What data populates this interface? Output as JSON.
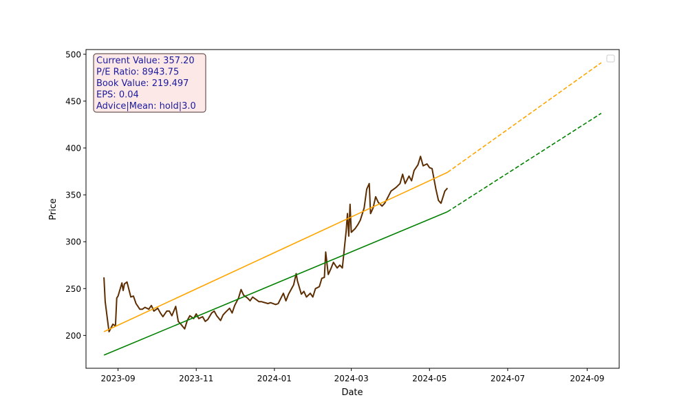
{
  "chart_data": {
    "type": "line",
    "title": "",
    "xlabel": "Date",
    "ylabel": "Price",
    "xlim": [
      "2023-08-07",
      "2024-09-26"
    ],
    "ylim": [
      165,
      505
    ],
    "x_ticks": [
      "2023-09-01",
      "2023-11-01",
      "2024-01-01",
      "2024-03-01",
      "2024-05-01",
      "2024-07-01",
      "2024-09-01"
    ],
    "x_tick_labels": [
      "2023-09",
      "2023-11",
      "2024-01",
      "2024-03",
      "2024-05",
      "2024-07",
      "2024-09"
    ],
    "y_ticks": [
      200,
      250,
      300,
      350,
      400,
      450,
      500
    ],
    "y_tick_labels": [
      "200",
      "250",
      "300",
      "350",
      "400",
      "450",
      "500"
    ],
    "grid": false,
    "legend": {
      "placement": "top-right",
      "entries": []
    },
    "colors": {
      "price": "#5c2d00",
      "green_trend": "#008000",
      "orange_trend": "#ffa500"
    },
    "info_box": {
      "lines": [
        "Current Value: 357.20",
        "P/E Ratio: 8943.75",
        "Book Value: 219.497",
        "EPS: 0.04",
        "Advice|Mean: hold|3.0"
      ],
      "background": "#fde8e8",
      "border": "#4a3030",
      "text_color": "#1a1a9c"
    },
    "series": [
      {
        "style": "solid",
        "color": "#5c2d00",
        "points": [
          [
            "2023-08-21",
            262
          ],
          [
            "2023-08-22",
            236
          ],
          [
            "2023-08-24",
            214
          ],
          [
            "2023-08-25",
            204
          ],
          [
            "2023-08-28",
            212
          ],
          [
            "2023-08-30",
            210
          ],
          [
            "2023-08-31",
            240
          ],
          [
            "2023-09-01",
            242
          ],
          [
            "2023-09-04",
            256
          ],
          [
            "2023-09-05",
            248
          ],
          [
            "2023-09-06",
            255
          ],
          [
            "2023-09-08",
            257
          ],
          [
            "2023-09-11",
            241
          ],
          [
            "2023-09-13",
            242
          ],
          [
            "2023-09-15",
            234
          ],
          [
            "2023-09-18",
            228
          ],
          [
            "2023-09-20",
            228
          ],
          [
            "2023-09-22",
            230
          ],
          [
            "2023-09-25",
            228
          ],
          [
            "2023-09-27",
            232
          ],
          [
            "2023-09-29",
            226
          ],
          [
            "2023-10-02",
            229
          ],
          [
            "2023-10-04",
            224
          ],
          [
            "2023-10-06",
            220
          ],
          [
            "2023-10-09",
            226
          ],
          [
            "2023-10-11",
            226
          ],
          [
            "2023-10-13",
            221
          ],
          [
            "2023-10-16",
            231
          ],
          [
            "2023-10-18",
            215
          ],
          [
            "2023-10-20",
            212
          ],
          [
            "2023-10-23",
            207
          ],
          [
            "2023-10-25",
            216
          ],
          [
            "2023-10-27",
            221
          ],
          [
            "2023-10-30",
            218
          ],
          [
            "2023-11-01",
            223
          ],
          [
            "2023-11-03",
            218
          ],
          [
            "2023-11-06",
            220
          ],
          [
            "2023-11-08",
            215
          ],
          [
            "2023-11-10",
            217
          ],
          [
            "2023-11-13",
            224
          ],
          [
            "2023-11-15",
            226
          ],
          [
            "2023-11-17",
            221
          ],
          [
            "2023-11-20",
            216
          ],
          [
            "2023-11-22",
            222
          ],
          [
            "2023-11-24",
            225
          ],
          [
            "2023-11-27",
            229
          ],
          [
            "2023-11-29",
            224
          ],
          [
            "2023-12-01",
            232
          ],
          [
            "2023-12-04",
            240
          ],
          [
            "2023-12-06",
            249
          ],
          [
            "2023-12-08",
            243
          ],
          [
            "2023-12-11",
            240
          ],
          [
            "2023-12-13",
            237
          ],
          [
            "2023-12-15",
            241
          ],
          [
            "2023-12-18",
            238
          ],
          [
            "2023-12-20",
            236
          ],
          [
            "2023-12-22",
            236
          ],
          [
            "2023-12-27",
            234
          ],
          [
            "2023-12-29",
            235
          ],
          [
            "2024-01-02",
            233
          ],
          [
            "2024-01-04",
            234
          ],
          [
            "2024-01-08",
            245
          ],
          [
            "2024-01-10",
            237
          ],
          [
            "2024-01-12",
            244
          ],
          [
            "2024-01-16",
            254
          ],
          [
            "2024-01-18",
            266
          ],
          [
            "2024-01-19",
            258
          ],
          [
            "2024-01-22",
            244
          ],
          [
            "2024-01-24",
            247
          ],
          [
            "2024-01-26",
            241
          ],
          [
            "2024-01-29",
            245
          ],
          [
            "2024-01-31",
            241
          ],
          [
            "2024-02-02",
            250
          ],
          [
            "2024-02-05",
            252
          ],
          [
            "2024-02-07",
            261
          ],
          [
            "2024-02-09",
            262
          ],
          [
            "2024-02-10",
            289
          ],
          [
            "2024-02-12",
            265
          ],
          [
            "2024-02-14",
            271
          ],
          [
            "2024-02-16",
            278
          ],
          [
            "2024-02-19",
            272
          ],
          [
            "2024-02-21",
            275
          ],
          [
            "2024-02-23",
            272
          ],
          [
            "2024-02-26",
            312
          ],
          [
            "2024-02-27",
            330
          ],
          [
            "2024-02-28",
            306
          ],
          [
            "2024-02-29",
            340
          ],
          [
            "2024-03-01",
            310
          ],
          [
            "2024-03-04",
            314
          ],
          [
            "2024-03-06",
            318
          ],
          [
            "2024-03-08",
            323
          ],
          [
            "2024-03-11",
            336
          ],
          [
            "2024-03-13",
            356
          ],
          [
            "2024-03-15",
            362
          ],
          [
            "2024-03-16",
            330
          ],
          [
            "2024-03-18",
            336
          ],
          [
            "2024-03-20",
            348
          ],
          [
            "2024-03-22",
            342
          ],
          [
            "2024-03-25",
            338
          ],
          [
            "2024-03-27",
            341
          ],
          [
            "2024-03-29",
            346
          ],
          [
            "2024-04-01",
            354
          ],
          [
            "2024-04-03",
            356
          ],
          [
            "2024-04-05",
            358
          ],
          [
            "2024-04-08",
            362
          ],
          [
            "2024-04-10",
            372
          ],
          [
            "2024-04-12",
            362
          ],
          [
            "2024-04-15",
            370
          ],
          [
            "2024-04-17",
            365
          ],
          [
            "2024-04-19",
            376
          ],
          [
            "2024-04-22",
            382
          ],
          [
            "2024-04-24",
            391
          ],
          [
            "2024-04-26",
            381
          ],
          [
            "2024-04-29",
            383
          ],
          [
            "2024-05-01",
            379
          ],
          [
            "2024-05-03",
            378
          ],
          [
            "2024-05-06",
            356
          ],
          [
            "2024-05-08",
            344
          ],
          [
            "2024-05-10",
            341
          ],
          [
            "2024-05-13",
            354
          ],
          [
            "2024-05-15",
            357.2
          ]
        ]
      },
      {
        "style": "solid",
        "color": "#ffa500",
        "points": [
          [
            "2023-08-21",
            204
          ],
          [
            "2024-05-15",
            374
          ]
        ]
      },
      {
        "style": "dashed",
        "color": "#ffa500",
        "points": [
          [
            "2024-05-15",
            374
          ],
          [
            "2024-09-12",
            491
          ]
        ]
      },
      {
        "style": "solid",
        "color": "#008000",
        "points": [
          [
            "2023-08-21",
            179
          ],
          [
            "2024-05-15",
            332
          ]
        ]
      },
      {
        "style": "dashed",
        "color": "#008000",
        "points": [
          [
            "2024-05-15",
            332
          ],
          [
            "2024-09-12",
            437
          ]
        ]
      }
    ]
  }
}
